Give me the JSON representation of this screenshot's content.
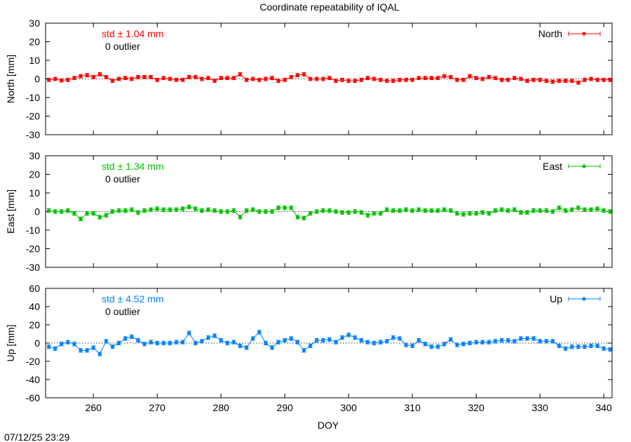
{
  "title": "Coordinate repeatability of IQAL",
  "timestamp": "07/12/25 23:29",
  "chart_data": {
    "type": "line",
    "title": "Coordinate repeatability of IQAL",
    "xlabel": "DOY",
    "xlim": [
      252.5,
      341.3
    ],
    "xticks": [
      260,
      270,
      280,
      290,
      300,
      310,
      320,
      330,
      340
    ],
    "x": [
      253,
      254,
      255,
      256,
      257,
      258,
      259,
      260,
      261,
      262,
      263,
      264,
      265,
      266,
      267,
      268,
      269,
      270,
      271,
      272,
      273,
      274,
      275,
      276,
      277,
      278,
      279,
      280,
      281,
      282,
      283,
      284,
      285,
      286,
      287,
      288,
      289,
      290,
      291,
      292,
      293,
      294,
      295,
      296,
      297,
      298,
      299,
      300,
      301,
      302,
      303,
      304,
      305,
      306,
      307,
      308,
      309,
      310,
      311,
      312,
      313,
      314,
      315,
      316,
      317,
      318,
      319,
      320,
      321,
      322,
      323,
      324,
      325,
      326,
      327,
      328,
      329,
      330,
      331,
      332,
      333,
      334,
      335,
      336,
      337,
      338,
      339,
      340,
      341
    ],
    "panels": [
      {
        "name": "North",
        "ylabel": "North [mm]",
        "ylim": [
          -30,
          30
        ],
        "yticks": [
          -30,
          -20,
          -10,
          0,
          10,
          20,
          30
        ],
        "color": "#ff0000",
        "std_text": "std ± 1.04 mm",
        "outlier_text": "0 outlier",
        "error": 0.9,
        "values": [
          -0.5,
          0,
          -0.8,
          -0.5,
          0.5,
          1.5,
          2,
          1,
          2.5,
          1,
          -1,
          0,
          0.5,
          0,
          1,
          1,
          1,
          -0.5,
          0.5,
          0,
          -0.5,
          -0.5,
          1,
          1,
          0,
          0.5,
          -1,
          0.5,
          0.5,
          0.5,
          2.5,
          -0.5,
          0,
          -0.5,
          0,
          0.5,
          -1,
          -0.5,
          1,
          2,
          2.5,
          0,
          0,
          0,
          0.5,
          -1,
          -0.5,
          -1,
          -1,
          -0.5,
          0.5,
          0,
          -0.5,
          -1,
          -1,
          -0.5,
          -0.5,
          -0.5,
          0.5,
          0.5,
          0.5,
          0.5,
          1.5,
          1,
          -0.5,
          -0.5,
          1.5,
          0.5,
          0,
          1,
          0.5,
          -0.5,
          -0.5,
          0.5,
          0,
          -1,
          -0.5,
          -0.5,
          -1,
          -1.5,
          -1,
          -1,
          -1,
          -2,
          -0.5,
          0,
          -0.5,
          -0.5,
          -0.5
        ]
      },
      {
        "name": "East",
        "ylabel": "East [mm]",
        "ylim": [
          -30,
          30
        ],
        "yticks": [
          -30,
          -20,
          -10,
          0,
          10,
          20,
          30
        ],
        "color": "#00c000",
        "std_text": "std ± 1.34 mm",
        "outlier_text": "0 outlier",
        "error": 1.0,
        "values": [
          0.5,
          0,
          0,
          0.5,
          -1,
          -4,
          -1,
          -1,
          -3,
          -2,
          0,
          0.5,
          0.5,
          1,
          -0.5,
          0.5,
          1,
          1.5,
          1,
          1,
          1,
          1.5,
          2.5,
          1.5,
          0.5,
          1,
          0.5,
          0,
          0,
          0.5,
          -3,
          0.5,
          1,
          0,
          0,
          0,
          2,
          2,
          2,
          -3,
          -3.5,
          -1,
          0,
          0.5,
          0.5,
          0,
          -0.5,
          -0.5,
          0,
          -0.5,
          -2,
          -1,
          -1,
          1,
          0.5,
          0.5,
          1,
          0.5,
          1,
          0.5,
          0.5,
          0.5,
          1,
          0.5,
          -1,
          -1.5,
          -1,
          -1,
          -0.5,
          -1,
          0.5,
          1,
          0.5,
          1,
          -0.5,
          -0.5,
          0.5,
          0.5,
          0.5,
          0,
          2,
          0.5,
          1,
          2,
          1,
          1,
          1.5,
          0.5,
          0
        ]
      },
      {
        "name": "Up",
        "ylabel": "Up [mm]",
        "ylim": [
          -60,
          60
        ],
        "yticks": [
          -60,
          -40,
          -20,
          0,
          20,
          40,
          60
        ],
        "color": "#0080ff",
        "std_text": "std ± 4.52 mm",
        "outlier_text": "0 outlier",
        "error": 2.0,
        "values": [
          -4,
          -6,
          -1,
          1,
          -1,
          -8,
          -8,
          -5,
          -12,
          2,
          -4,
          0,
          5,
          7,
          3,
          -1,
          1,
          0,
          0,
          0,
          1,
          1,
          11,
          0,
          2,
          6,
          8,
          3,
          0,
          1,
          -3,
          -5,
          5,
          12,
          0,
          -5,
          1,
          3,
          5,
          1,
          -8,
          -3,
          3,
          3,
          4,
          1,
          6,
          9,
          6,
          3,
          1,
          0,
          1,
          2,
          6,
          5,
          -2,
          -3,
          3,
          -1,
          -4,
          -4,
          -1,
          4,
          -2,
          -1,
          0,
          1,
          1,
          1,
          2,
          3,
          3,
          2,
          5,
          5,
          5,
          2,
          2,
          2,
          -3,
          -6,
          -4,
          -4,
          -4,
          -3,
          -3,
          -6,
          -7
        ]
      }
    ]
  }
}
